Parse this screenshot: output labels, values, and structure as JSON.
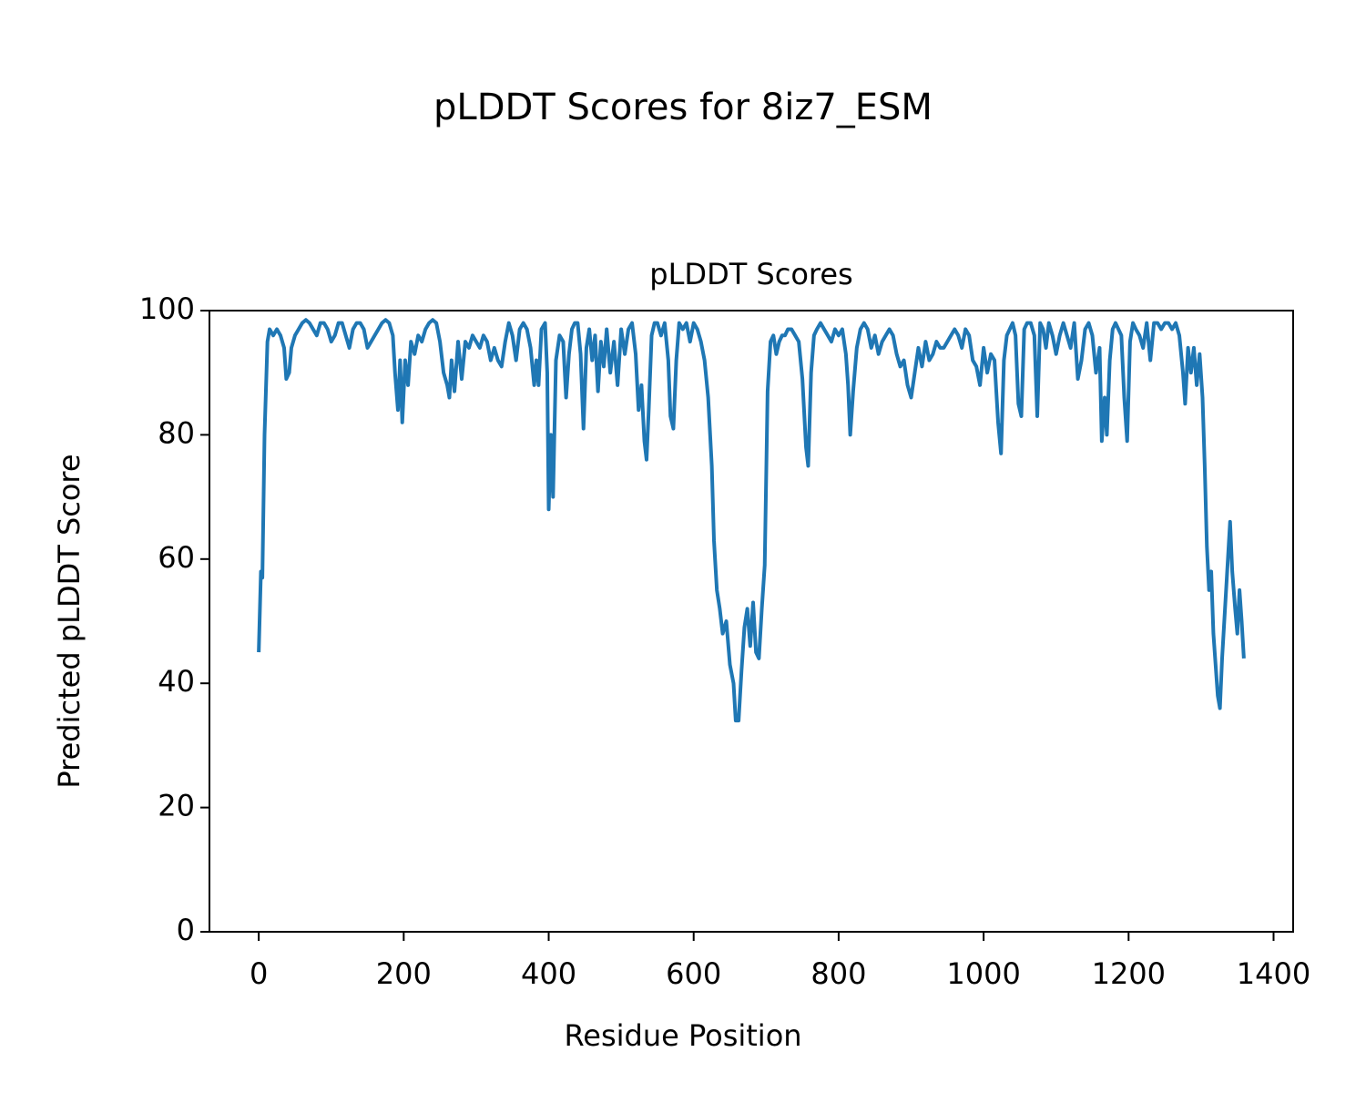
{
  "chart_data": {
    "type": "line",
    "title": "pLDDT Scores for 8iz7_ESM",
    "subtitle": "pLDDT Scores",
    "x_label": "Residue Position",
    "y_label": "Predicted pLDDT Score",
    "xlim": [
      -68,
      1427
    ],
    "ylim": [
      0,
      100
    ],
    "xticks": [
      0,
      200,
      400,
      600,
      800,
      1000,
      1200,
      1400
    ],
    "yticks": [
      0,
      20,
      40,
      60,
      80,
      100
    ],
    "color": "#1f77b4",
    "x": [
      0,
      3,
      5,
      8,
      12,
      15,
      20,
      25,
      30,
      35,
      38,
      42,
      45,
      50,
      55,
      60,
      65,
      70,
      75,
      80,
      85,
      90,
      95,
      100,
      105,
      110,
      115,
      120,
      125,
      130,
      135,
      140,
      145,
      150,
      155,
      160,
      165,
      170,
      175,
      180,
      185,
      188,
      192,
      195,
      198,
      202,
      206,
      210,
      215,
      220,
      225,
      230,
      235,
      240,
      245,
      250,
      255,
      260,
      263,
      266,
      270,
      275,
      280,
      285,
      290,
      295,
      300,
      305,
      310,
      315,
      320,
      325,
      330,
      335,
      340,
      345,
      350,
      355,
      360,
      365,
      370,
      375,
      380,
      383,
      386,
      390,
      395,
      398,
      400,
      403,
      406,
      410,
      415,
      420,
      424,
      428,
      432,
      436,
      440,
      444,
      448,
      452,
      456,
      460,
      464,
      468,
      472,
      476,
      480,
      485,
      490,
      495,
      500,
      505,
      510,
      515,
      520,
      524,
      528,
      532,
      535,
      538,
      542,
      546,
      550,
      555,
      560,
      565,
      568,
      572,
      576,
      580,
      585,
      590,
      595,
      600,
      605,
      610,
      615,
      620,
      625,
      628,
      632,
      636,
      640,
      645,
      650,
      655,
      658,
      662,
      666,
      670,
      674,
      678,
      682,
      686,
      690,
      694,
      698,
      702,
      706,
      710,
      714,
      718,
      722,
      726,
      730,
      735,
      740,
      745,
      750,
      755,
      758,
      762,
      766,
      770,
      775,
      780,
      785,
      790,
      795,
      800,
      805,
      810,
      813,
      816,
      820,
      825,
      830,
      835,
      840,
      845,
      850,
      855,
      860,
      865,
      870,
      875,
      880,
      885,
      890,
      895,
      900,
      905,
      910,
      915,
      920,
      925,
      930,
      935,
      940,
      945,
      950,
      955,
      960,
      965,
      970,
      975,
      980,
      985,
      990,
      995,
      1000,
      1005,
      1010,
      1015,
      1020,
      1024,
      1028,
      1032,
      1036,
      1040,
      1044,
      1048,
      1052,
      1056,
      1060,
      1065,
      1070,
      1074,
      1078,
      1082,
      1086,
      1090,
      1095,
      1100,
      1105,
      1110,
      1115,
      1120,
      1125,
      1130,
      1135,
      1140,
      1145,
      1150,
      1155,
      1160,
      1163,
      1167,
      1170,
      1174,
      1178,
      1182,
      1186,
      1190,
      1194,
      1198,
      1202,
      1206,
      1210,
      1215,
      1220,
      1225,
      1230,
      1235,
      1240,
      1245,
      1250,
      1255,
      1260,
      1265,
      1270,
      1275,
      1278,
      1282,
      1286,
      1290,
      1294,
      1298,
      1302,
      1305,
      1308,
      1311,
      1314,
      1317,
      1320,
      1323,
      1326,
      1329,
      1333,
      1337,
      1340,
      1343,
      1347,
      1350,
      1353,
      1356,
      1359
    ],
    "values": [
      45,
      58,
      57,
      80,
      95,
      97,
      96,
      97,
      96,
      94,
      89,
      90,
      94,
      96,
      97,
      98,
      98.5,
      98,
      97,
      96,
      98,
      98,
      97,
      95,
      96,
      98,
      98,
      96,
      94,
      97,
      98,
      98,
      97,
      94,
      95,
      96,
      97,
      98,
      98.5,
      98,
      96,
      90,
      84,
      92,
      82,
      92,
      88,
      95,
      93,
      96,
      95,
      97,
      98,
      98.5,
      98,
      95,
      90,
      88,
      86,
      92,
      87,
      95,
      89,
      95,
      94,
      96,
      95,
      94,
      96,
      95,
      92,
      94,
      92,
      91,
      95,
      98,
      96,
      92,
      97,
      98,
      97,
      94,
      88,
      92,
      88,
      97,
      98,
      90,
      68,
      80,
      70,
      92,
      96,
      95,
      86,
      93,
      97,
      98,
      98,
      93,
      81,
      94,
      97,
      92,
      96,
      87,
      95,
      91,
      97,
      90,
      95,
      88,
      97,
      93,
      97,
      98,
      93,
      84,
      88,
      79,
      76,
      84,
      96,
      98,
      98,
      96,
      98,
      92,
      83,
      81,
      92,
      98,
      97,
      98,
      95,
      98,
      97,
      95,
      92,
      86,
      75,
      63,
      55,
      52,
      48,
      50,
      43,
      40,
      34,
      34,
      42,
      49,
      52,
      46,
      53,
      45,
      44,
      52,
      59,
      87,
      95,
      96,
      93,
      95,
      96,
      96,
      97,
      97,
      96,
      95,
      89,
      78,
      75,
      90,
      96,
      97,
      98,
      97,
      96,
      95,
      97,
      96,
      97,
      93,
      88,
      80,
      87,
      94,
      97,
      98,
      97,
      94,
      96,
      93,
      95,
      96,
      97,
      96,
      93,
      91,
      92,
      88,
      86,
      90,
      94,
      91,
      95,
      92,
      93,
      95,
      94,
      94,
      95,
      96,
      97,
      96,
      94,
      97,
      96,
      92,
      91,
      88,
      94,
      90,
      93,
      92,
      82,
      77,
      92,
      96,
      97,
      98,
      96,
      85,
      83,
      97,
      98,
      98,
      96,
      83,
      98,
      97,
      94,
      98,
      96,
      93,
      96,
      98,
      96,
      94,
      98,
      89,
      92,
      97,
      98,
      96,
      90,
      94,
      79,
      86,
      80,
      92,
      97,
      98,
      97,
      96,
      86,
      79,
      95,
      98,
      97,
      96,
      94,
      98,
      92,
      98,
      98,
      97,
      98,
      98,
      97,
      98,
      96,
      90,
      85,
      94,
      90,
      94,
      88,
      93,
      86,
      75,
      62,
      55,
      58,
      48,
      43,
      38,
      36,
      44,
      52,
      60,
      66,
      58,
      52,
      48,
      55,
      50,
      44
    ]
  }
}
